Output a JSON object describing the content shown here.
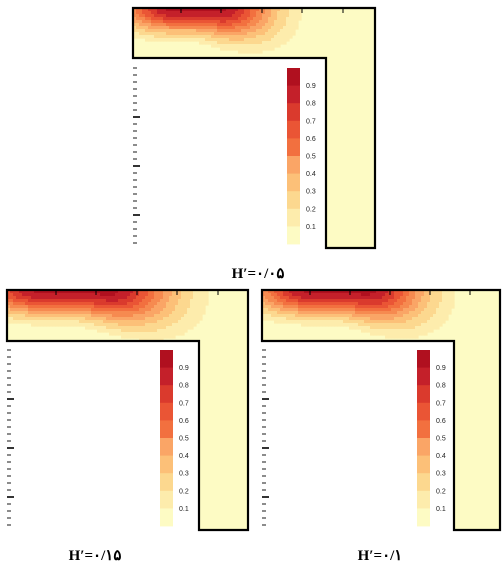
{
  "figure": {
    "panels": [
      {
        "id": "panel-top",
        "caption": "H′=۰/۰۵",
        "jet_core_center": 0.26,
        "jet_core_halfwidth": 0.09,
        "jet_spread": 0.28
      },
      {
        "id": "panel-bottom-left",
        "caption": "H′=۰/۱۵",
        "jet_core_center": 0.28,
        "jet_core_halfwidth": 0.14,
        "jet_spread": 0.33
      },
      {
        "id": "panel-bottom-right",
        "caption": "H′=۰/۱",
        "jet_core_center": 0.32,
        "jet_core_halfwidth": 0.12,
        "jet_spread": 0.3
      }
    ]
  },
  "chart_data": {
    "type": "heatmap",
    "colorbar": {
      "ticks": [
        "0.9",
        "0.8",
        "0.7",
        "0.6",
        "0.5",
        "0.4",
        "0.3",
        "0.2",
        "0.1"
      ],
      "range": [
        0,
        1
      ],
      "colors": [
        "#fdfbc4",
        "#fdecac",
        "#fcd88f",
        "#fcc078",
        "#faa566",
        "#f68a50",
        "#f2703f",
        "#ea5535",
        "#da3a2d",
        "#c4202a",
        "#b0101f"
      ]
    }
  }
}
